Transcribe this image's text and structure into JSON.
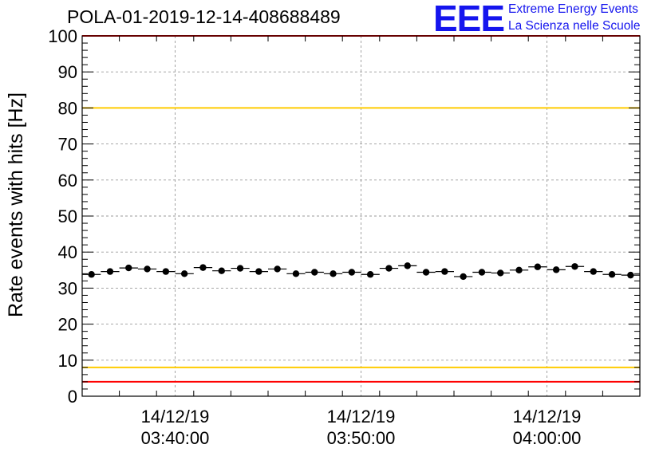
{
  "title": "POLA-01-2019-12-14-408688489",
  "logo": {
    "mark": "EEE",
    "line1": "Extreme Energy Events",
    "line2": "La Scienza nelle Scuole",
    "color": "#1515ee"
  },
  "chart_data": {
    "type": "scatter",
    "ylabel": "Rate events with hits [Hz]",
    "ylim": [
      0,
      100
    ],
    "y_ticks": [
      0,
      10,
      20,
      30,
      40,
      50,
      60,
      70,
      80,
      90,
      100
    ],
    "x_time_range": [
      "2019-12-14 03:35:00",
      "2019-12-14 04:05:00"
    ],
    "x_tick_labels": [
      {
        "time": "03:40:00",
        "date": "14/12/19",
        "label_line1": "14/12/19",
        "label_line2": "03:40:00"
      },
      {
        "time": "03:50:00",
        "date": "14/12/19",
        "label_line1": "14/12/19",
        "label_line2": "03:50:00"
      },
      {
        "time": "04:00:00",
        "date": "14/12/19",
        "label_line1": "14/12/19",
        "label_line2": "04:00:00"
      }
    ],
    "grid": true,
    "bin_width_minutes": 1,
    "reference_lines": [
      {
        "y": 100,
        "color": "#ff0000"
      },
      {
        "y": 80,
        "color": "#ffcc00"
      },
      {
        "y": 8,
        "color": "#ffcc00"
      },
      {
        "y": 4,
        "color": "#ff0000"
      }
    ],
    "series": [
      {
        "marker_color": "#000000",
        "x": [
          "03:35:30",
          "03:36:30",
          "03:37:30",
          "03:38:30",
          "03:39:30",
          "03:40:30",
          "03:41:30",
          "03:42:30",
          "03:43:30",
          "03:44:30",
          "03:45:30",
          "03:46:30",
          "03:47:30",
          "03:48:30",
          "03:49:30",
          "03:50:30",
          "03:51:30",
          "03:52:30",
          "03:53:30",
          "03:54:30",
          "03:55:30",
          "03:56:30",
          "03:57:30",
          "03:58:30",
          "03:59:30",
          "04:00:30",
          "04:01:30",
          "04:02:30",
          "04:03:30",
          "04:04:30"
        ],
        "values": [
          33.8,
          34.6,
          35.6,
          35.3,
          34.6,
          34.0,
          35.7,
          34.8,
          35.5,
          34.6,
          35.3,
          34.0,
          34.4,
          34.0,
          34.4,
          33.8,
          35.5,
          36.2,
          34.4,
          34.6,
          33.2,
          34.4,
          34.2,
          35.0,
          35.9,
          35.1,
          36.0,
          34.6,
          33.8,
          33.6
        ]
      }
    ]
  }
}
